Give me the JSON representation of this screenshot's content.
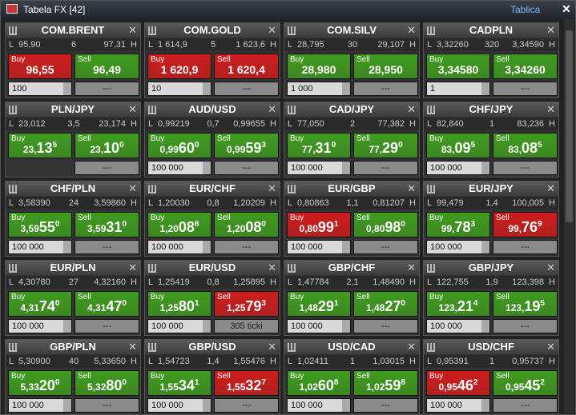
{
  "window": {
    "title": "Tabela FX [42]",
    "mode": "Tablica"
  },
  "labels": {
    "low": "L",
    "high": "H",
    "buy": "Buy",
    "sell": "Sell"
  },
  "tiles": [
    {
      "name": "COM.BRENT",
      "low": "95,90",
      "spread": "6",
      "high": "97,31",
      "buy": {
        "price": [
          "96,55"
        ],
        "color": "#d01c1c"
      },
      "sell": {
        "price": [
          "96,49"
        ],
        "color": "#3f9c1e"
      },
      "amount": "100",
      "action": "---"
    },
    {
      "name": "COM.GOLD",
      "low": "1 614,9",
      "spread": "5",
      "high": "1 623,6",
      "buy": {
        "price": [
          "1 620,9"
        ],
        "color": "#d01c1c"
      },
      "sell": {
        "price": [
          "1 620,4"
        ],
        "color": "#d01c1c"
      },
      "amount": "10",
      "action": "---"
    },
    {
      "name": "COM.SILV",
      "low": "28,795",
      "spread": "30",
      "high": "29,107",
      "buy": {
        "price": [
          "28,980"
        ],
        "color": "#3f9c1e"
      },
      "sell": {
        "price": [
          "28,950"
        ],
        "color": "#3f9c1e"
      },
      "amount": "1 000",
      "action": "---"
    },
    {
      "name": "CADPLN",
      "low": "3,32260",
      "spread": "320",
      "high": "3,34590",
      "buy": {
        "price": [
          "3,34580"
        ],
        "color": "#3f9c1e"
      },
      "sell": {
        "price": [
          "3,34260"
        ],
        "color": "#3f9c1e"
      },
      "amount": "1",
      "action": "---"
    },
    {
      "name": "PLN/JPY",
      "low": "23,012",
      "spread": "3,5",
      "high": "23,174",
      "buy": {
        "price": [
          "23,",
          "13",
          "5"
        ],
        "color": "#3f9c1e"
      },
      "sell": {
        "price": [
          "23,",
          "10",
          "0"
        ],
        "color": "#3f9c1e"
      },
      "action": "---"
    },
    {
      "name": "AUD/USD",
      "low": "0,99219",
      "spread": "0,7",
      "high": "0,99655",
      "buy": {
        "price": [
          "0,99",
          "60",
          "0"
        ],
        "color": "#3f9c1e"
      },
      "sell": {
        "price": [
          "0,99",
          "59",
          "3"
        ],
        "color": "#3f9c1e"
      },
      "amount": "100 000",
      "action": "---"
    },
    {
      "name": "CAD/JPY",
      "low": "77,050",
      "spread": "2",
      "high": "77,382",
      "buy": {
        "price": [
          "77,",
          "31",
          "0"
        ],
        "color": "#3f9c1e"
      },
      "sell": {
        "price": [
          "77,",
          "29",
          "0"
        ],
        "color": "#3f9c1e"
      },
      "amount": "100 000",
      "action": "---"
    },
    {
      "name": "CHF/JPY",
      "low": "82,840",
      "spread": "1",
      "high": "83,236",
      "buy": {
        "price": [
          "83,",
          "09",
          "5"
        ],
        "color": "#3f9c1e"
      },
      "sell": {
        "price": [
          "83,",
          "08",
          "5"
        ],
        "color": "#3f9c1e"
      },
      "amount": "100 000",
      "action": "---"
    },
    {
      "name": "CHF/PLN",
      "low": "3,58390",
      "spread": "24",
      "high": "3,59860",
      "buy": {
        "price": [
          "3,59",
          "55",
          "0"
        ],
        "color": "#3f9c1e"
      },
      "sell": {
        "price": [
          "3,59",
          "31",
          "0"
        ],
        "color": "#3f9c1e"
      },
      "amount": "100 000",
      "action": "---"
    },
    {
      "name": "EUR/CHF",
      "low": "1,20030",
      "spread": "0,8",
      "high": "1,20209",
      "buy": {
        "price": [
          "1,20",
          "08",
          "8"
        ],
        "color": "#3f9c1e"
      },
      "sell": {
        "price": [
          "1,20",
          "08",
          "0"
        ],
        "color": "#3f9c1e"
      },
      "amount": "100 000",
      "action": "---"
    },
    {
      "name": "EUR/GBP",
      "low": "0,80863",
      "spread": "1,1",
      "high": "0,81207",
      "buy": {
        "price": [
          "0,80",
          "99",
          "1"
        ],
        "color": "#d01c1c"
      },
      "sell": {
        "price": [
          "0,80",
          "98",
          "0"
        ],
        "color": "#3f9c1e"
      },
      "amount": "100 000",
      "action": "---"
    },
    {
      "name": "EUR/JPY",
      "low": "99,479",
      "spread": "1,4",
      "high": "100,005",
      "buy": {
        "price": [
          "99,",
          "78",
          "3"
        ],
        "color": "#3f9c1e"
      },
      "sell": {
        "price": [
          "99,",
          "76",
          "9"
        ],
        "color": "#d01c1c"
      },
      "amount": "100 000",
      "action": "---"
    },
    {
      "name": "EUR/PLN",
      "low": "4,30780",
      "spread": "27",
      "high": "4,32160",
      "buy": {
        "price": [
          "4,31",
          "74",
          "0"
        ],
        "color": "#3f9c1e"
      },
      "sell": {
        "price": [
          "4,31",
          "47",
          "0"
        ],
        "color": "#3f9c1e"
      },
      "amount": "100 000",
      "action": "---"
    },
    {
      "name": "EUR/USD",
      "low": "1,25419",
      "spread": "0,8",
      "high": "1,25895",
      "buy": {
        "price": [
          "1,25",
          "80",
          "1"
        ],
        "color": "#3f9c1e"
      },
      "sell": {
        "price": [
          "1,25",
          "79",
          "3"
        ],
        "color": "#d01c1c"
      },
      "amount": "100 000",
      "action": "305 ticki"
    },
    {
      "name": "GBP/CHF",
      "low": "1,47784",
      "spread": "2,1",
      "high": "1,48490",
      "buy": {
        "price": [
          "1,48",
          "29",
          "1"
        ],
        "color": "#3f9c1e"
      },
      "sell": {
        "price": [
          "1,48",
          "27",
          "0"
        ],
        "color": "#3f9c1e"
      },
      "amount": "100 000",
      "action": "---"
    },
    {
      "name": "GBP/JPY",
      "low": "122,755",
      "spread": "1,9",
      "high": "123,398",
      "buy": {
        "price": [
          "123,",
          "21",
          "4"
        ],
        "color": "#3f9c1e"
      },
      "sell": {
        "price": [
          "123,",
          "19",
          "5"
        ],
        "color": "#3f9c1e"
      },
      "amount": "100 000",
      "action": "---"
    },
    {
      "name": "GBP/PLN",
      "low": "5,30900",
      "spread": "40",
      "high": "5,33650",
      "buy": {
        "price": [
          "5,33",
          "20",
          "0"
        ],
        "color": "#3f9c1e"
      },
      "sell": {
        "price": [
          "5,32",
          "80",
          "0"
        ],
        "color": "#3f9c1e"
      },
      "amount": "100 000",
      "action": "---"
    },
    {
      "name": "GBP/USD",
      "low": "1,54723",
      "spread": "1,4",
      "high": "1,55476",
      "buy": {
        "price": [
          "1,55",
          "34",
          "1"
        ],
        "color": "#3f9c1e"
      },
      "sell": {
        "price": [
          "1,55",
          "32",
          "7"
        ],
        "color": "#d01c1c"
      },
      "amount": "100 000",
      "action": "---"
    },
    {
      "name": "USD/CAD",
      "low": "1,02411",
      "spread": "1",
      "high": "1,03015",
      "buy": {
        "price": [
          "1,02",
          "60",
          "8"
        ],
        "color": "#3f9c1e"
      },
      "sell": {
        "price": [
          "1,02",
          "59",
          "8"
        ],
        "color": "#3f9c1e"
      },
      "amount": "100 000",
      "action": "---"
    },
    {
      "name": "USD/CHF",
      "low": "0,95391",
      "spread": "1",
      "high": "0,95737",
      "buy": {
        "price": [
          "0,95",
          "46",
          "2"
        ],
        "color": "#d01c1c"
      },
      "sell": {
        "price": [
          "0,95",
          "45",
          "2"
        ],
        "color": "#3f9c1e"
      },
      "amount": "100 000",
      "action": "---"
    }
  ]
}
